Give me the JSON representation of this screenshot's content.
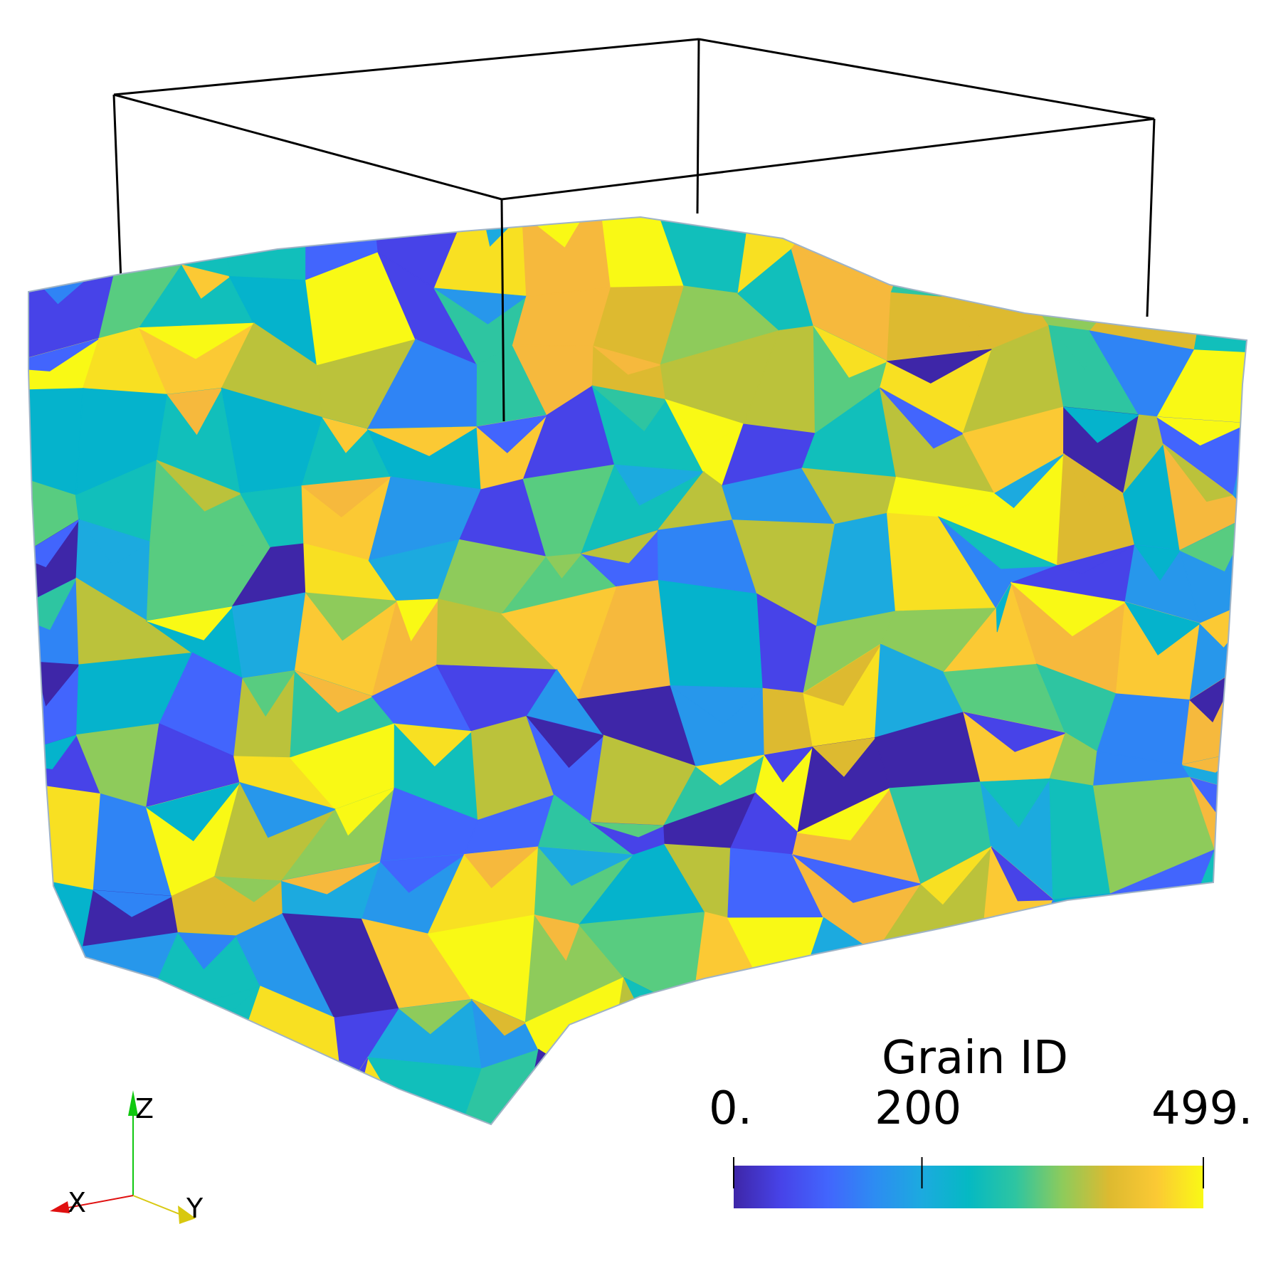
{
  "scene": {
    "grain_palette": [
      "#3e26a8",
      "#4743e8",
      "#4265fd",
      "#2f84f5",
      "#2797eb",
      "#1caadf",
      "#05b3cc",
      "#11bfbb",
      "#2ec5a1",
      "#58cc80",
      "#8ecb5b",
      "#bbc23b",
      "#ddba30",
      "#f6b93d",
      "#fbc934",
      "#f8e022",
      "#f9f915"
    ]
  },
  "colorbar": {
    "title": "Grain ID",
    "range": [
      0,
      499
    ],
    "ticks": [
      {
        "label": "0.",
        "value": 0
      },
      {
        "label": "200",
        "value": 200
      },
      {
        "label": "499.",
        "value": 499
      }
    ],
    "colormap": [
      "#3e26a8",
      "#4743e8",
      "#4265fd",
      "#2d8cf2",
      "#1caadf",
      "#05b9c3",
      "#2ec5a1",
      "#8ecb5b",
      "#ddba30",
      "#fbc934",
      "#f9f915"
    ]
  },
  "orientation_axes": {
    "x": {
      "label": "X",
      "color": "#e01010"
    },
    "y": {
      "label": "Y",
      "color": "#d8c810"
    },
    "z": {
      "label": "Z",
      "color": "#10c810"
    }
  }
}
